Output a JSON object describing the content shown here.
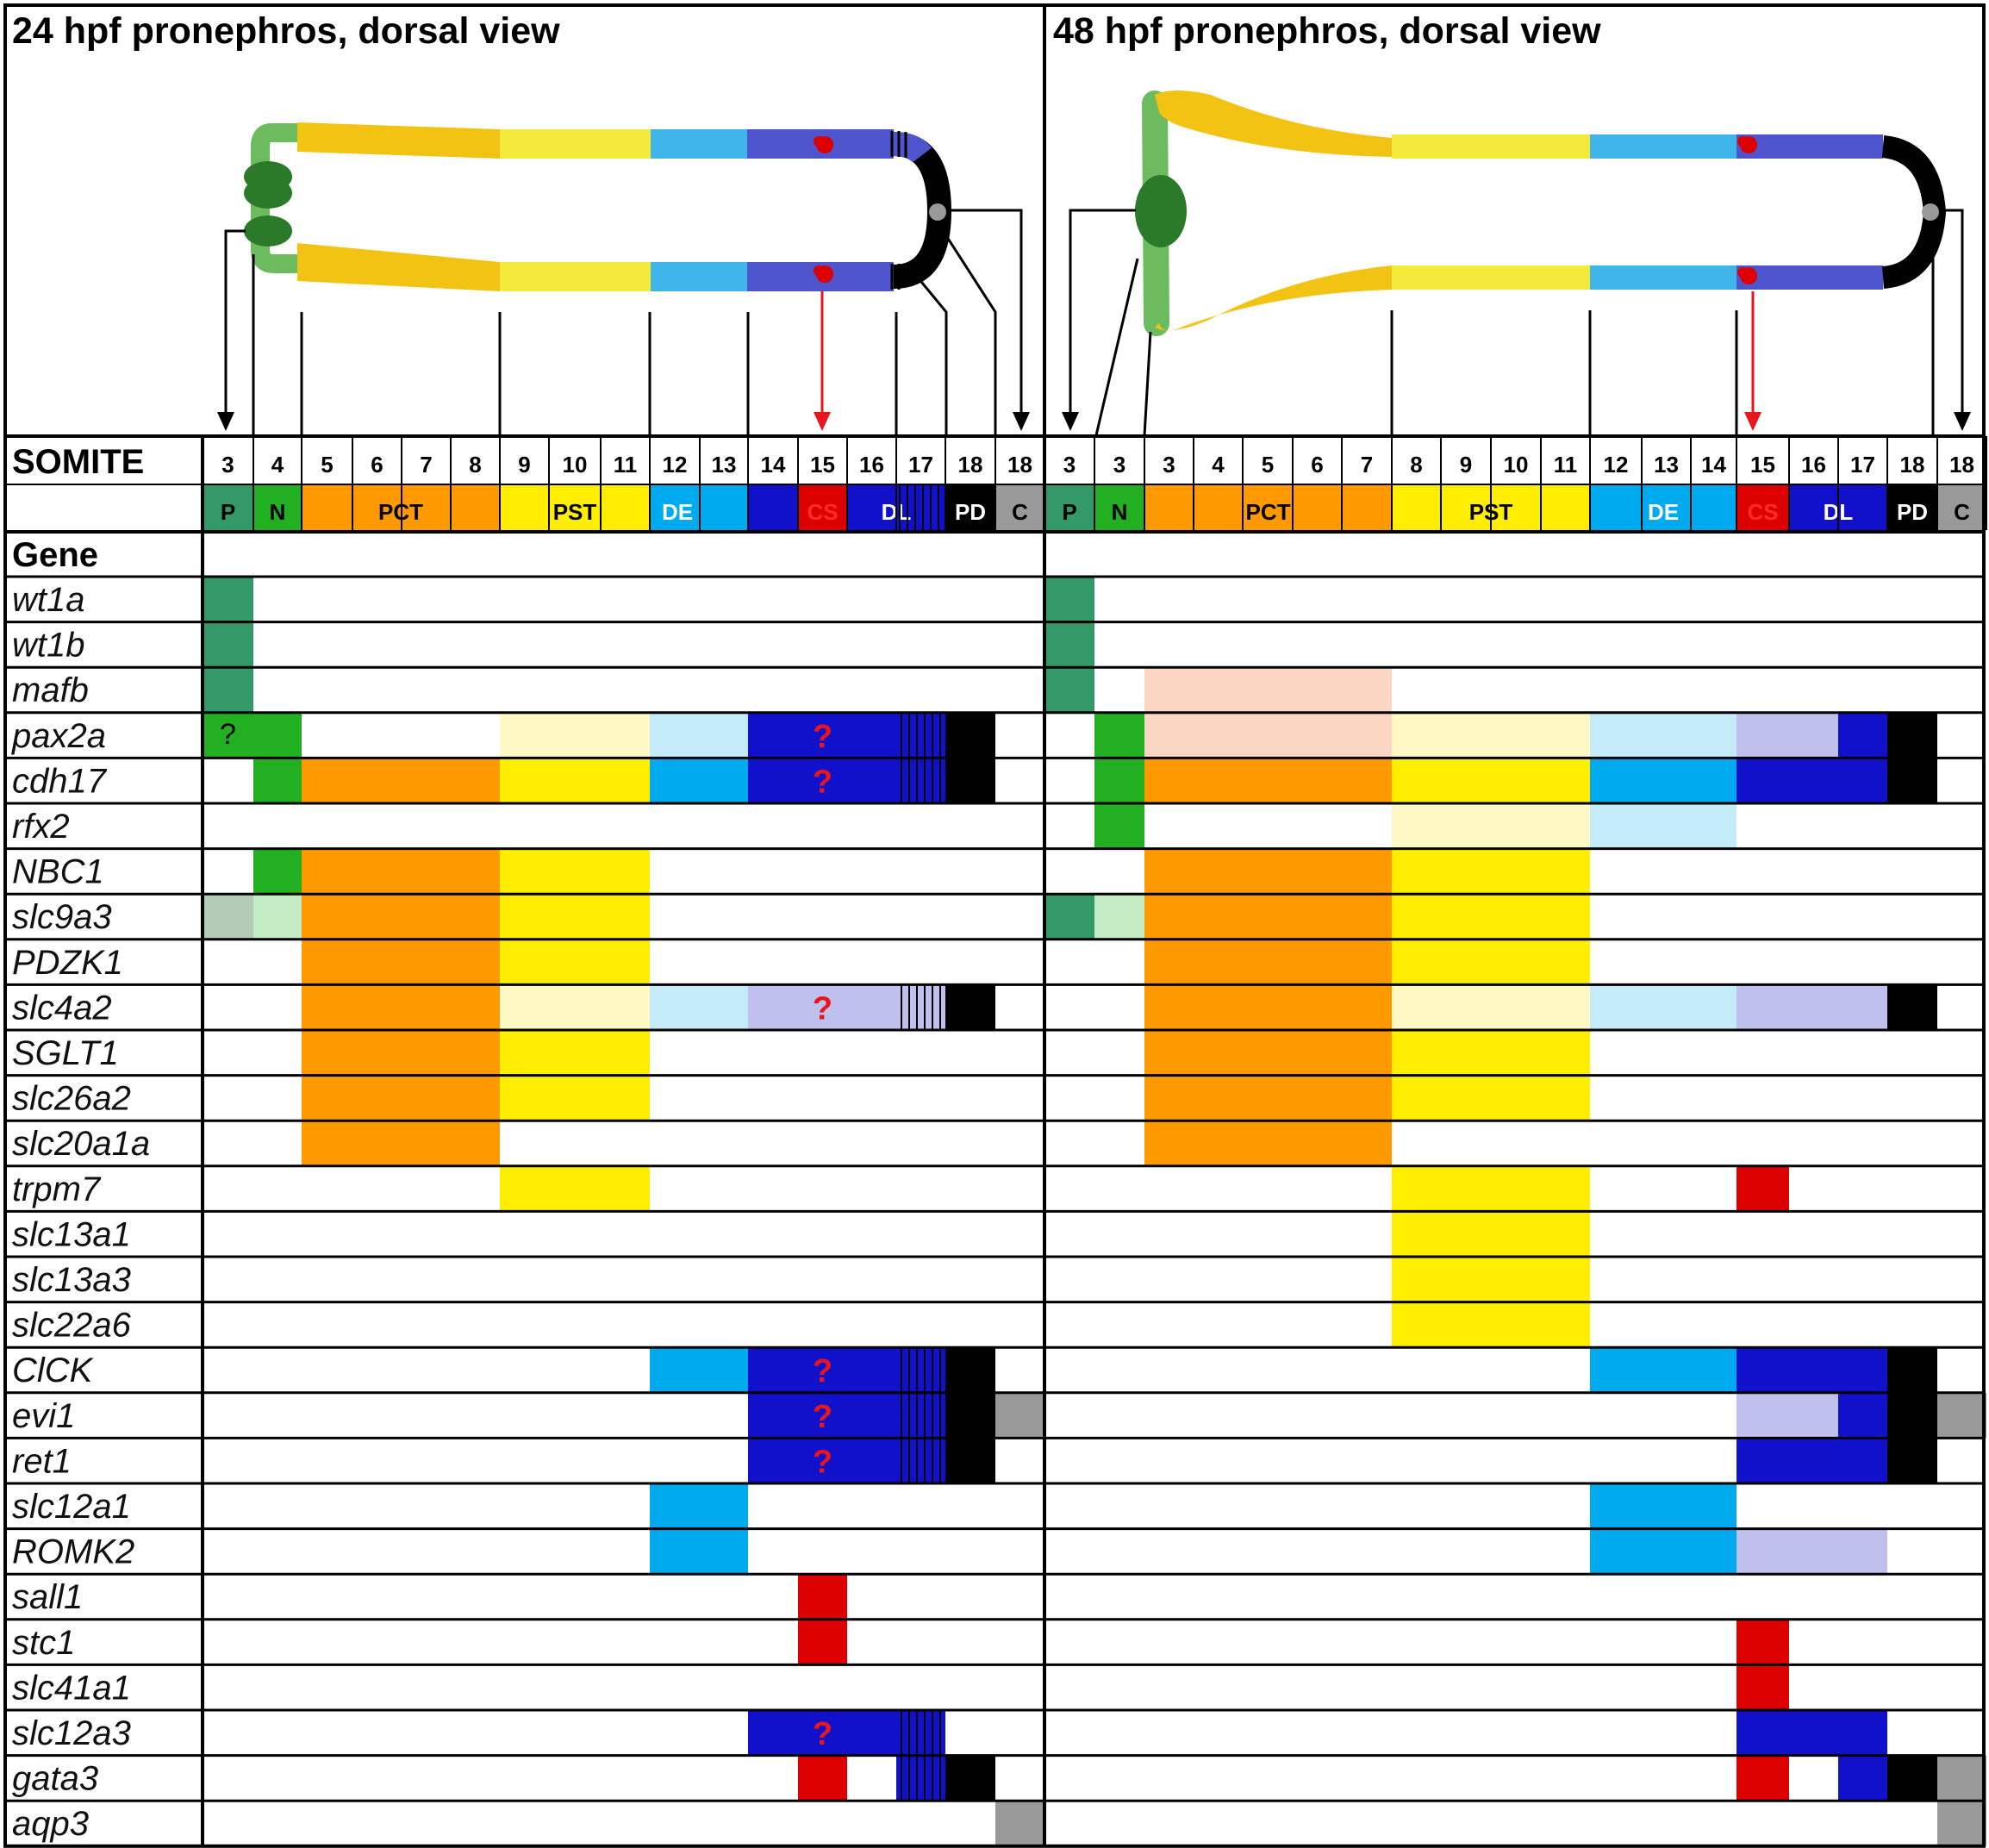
{
  "titles": {
    "left": "24 hpf pronephros, dorsal view",
    "right": "48 hpf pronephros, dorsal view"
  },
  "row_headers": {
    "somite": "SOMITE",
    "gene": "Gene"
  },
  "colors": {
    "P": "#339966",
    "N": "#22b022",
    "PCT": "#ff9900",
    "PST": "#ffee00",
    "DE": "#00aaee",
    "DL": "#1111cc",
    "CS": "#dd0000",
    "PD": "#000000",
    "C": "#999999",
    "P_light": "#b3ccb8",
    "N_light": "#c4ecc4",
    "PCT_light": "#fbd7c3",
    "PST_light": "#fdf8c4",
    "DE_light": "#c3ebf8",
    "DL_light": "#c0c0ee",
    "question": "#e8161c",
    "duct_green": "#6cbb5f",
    "duct_yellow": "#f2c313",
    "duct_pale_yellow": "#f3ea3c",
    "duct_light_blue": "#3fb5ea",
    "duct_blue": "#4e55cc",
    "glomerulus": "#2a7a2a"
  },
  "panels": [
    {
      "id": "24hpf",
      "columns": [
        {
          "key": "P",
          "somite": "3",
          "segment": "P"
        },
        {
          "key": "N",
          "somite": "4",
          "segment": "N"
        },
        {
          "key": "PCT",
          "somite": "5",
          "segment": ""
        },
        {
          "key": "PCT",
          "somite": "6",
          "segment": "PCT"
        },
        {
          "key": "PCT",
          "somite": "7",
          "segment": ""
        },
        {
          "key": "PCT",
          "somite": "8",
          "segment": ""
        },
        {
          "key": "PST",
          "somite": "9",
          "segment": ""
        },
        {
          "key": "PST",
          "somite": "10",
          "segment": "PST"
        },
        {
          "key": "PST",
          "somite": "11",
          "segment": ""
        },
        {
          "key": "DE",
          "somite": "12",
          "segment": "DE"
        },
        {
          "key": "DE",
          "somite": "13",
          "segment": ""
        },
        {
          "key": "DL",
          "somite": "14",
          "segment": ""
        },
        {
          "key": "CS",
          "somite": "15",
          "segment": "CS"
        },
        {
          "key": "DL",
          "somite": "16",
          "segment": "DL"
        },
        {
          "key": "DL",
          "somite": "17",
          "segment": ""
        },
        {
          "key": "PD",
          "somite": "18",
          "segment": "PD"
        },
        {
          "key": "C",
          "somite": "18",
          "segment": "C"
        }
      ]
    },
    {
      "id": "48hpf",
      "columns": [
        {
          "key": "P",
          "somite": "3",
          "segment": "P"
        },
        {
          "key": "N",
          "somite": "3",
          "segment": "N"
        },
        {
          "key": "PCT",
          "somite": "3",
          "segment": ""
        },
        {
          "key": "PCT",
          "somite": "4",
          "segment": ""
        },
        {
          "key": "PCT",
          "somite": "5",
          "segment": "PCT"
        },
        {
          "key": "PCT",
          "somite": "6",
          "segment": ""
        },
        {
          "key": "PCT",
          "somite": "7",
          "segment": ""
        },
        {
          "key": "PST",
          "somite": "8",
          "segment": ""
        },
        {
          "key": "PST",
          "somite": "9",
          "segment": "PST"
        },
        {
          "key": "PST",
          "somite": "10",
          "segment": ""
        },
        {
          "key": "PST",
          "somite": "11",
          "segment": ""
        },
        {
          "key": "DE",
          "somite": "12",
          "segment": ""
        },
        {
          "key": "DE",
          "somite": "13",
          "segment": "DE"
        },
        {
          "key": "DE",
          "somite": "14",
          "segment": ""
        },
        {
          "key": "CS",
          "somite": "15",
          "segment": "CS"
        },
        {
          "key": "DL",
          "somite": "16",
          "segment": "DL"
        },
        {
          "key": "DL",
          "somite": "17",
          "segment": ""
        },
        {
          "key": "PD",
          "somite": "18",
          "segment": "PD"
        },
        {
          "key": "C",
          "somite": "18",
          "segment": "C"
        }
      ]
    }
  ],
  "genes": [
    {
      "name": "wt1a",
      "left": [
        [
          "P",
          0,
          0
        ]
      ],
      "right": [
        [
          "P",
          0,
          0
        ]
      ]
    },
    {
      "name": "wt1b",
      "left": [
        [
          "P",
          0,
          0
        ]
      ],
      "right": [
        [
          "P",
          0,
          0
        ]
      ]
    },
    {
      "name": "mafb",
      "left": [
        [
          "P",
          0,
          0
        ]
      ],
      "right": [
        [
          "P",
          0,
          0
        ],
        [
          "PCT_light",
          2,
          6
        ]
      ]
    },
    {
      "name": "pax2a",
      "left": [
        [
          "N",
          0,
          1,
          "?"
        ],
        [
          "PST_light",
          6,
          8
        ],
        [
          "DE_light",
          9,
          10
        ],
        [
          "DL",
          11,
          14,
          "",
          12
        ],
        [
          "PD",
          15,
          15
        ]
      ],
      "right": [
        [
          "N",
          1,
          1
        ],
        [
          "PCT_light",
          2,
          6
        ],
        [
          "PST_light",
          7,
          10
        ],
        [
          "DE_light",
          11,
          13
        ],
        [
          "DL_light",
          14,
          15
        ],
        [
          "DL",
          16,
          16
        ],
        [
          "PD",
          17,
          17
        ]
      ]
    },
    {
      "name": "cdh17",
      "left": [
        [
          "N",
          1,
          1
        ],
        [
          "PCT",
          2,
          5
        ],
        [
          "PST",
          6,
          8
        ],
        [
          "DE",
          9,
          10
        ],
        [
          "DL",
          11,
          14,
          "",
          12
        ],
        [
          "PD",
          15,
          15
        ]
      ],
      "right": [
        [
          "N",
          1,
          1
        ],
        [
          "PCT",
          2,
          6
        ],
        [
          "PST",
          7,
          10
        ],
        [
          "DE",
          11,
          13
        ],
        [
          "DL",
          14,
          16
        ],
        [
          "PD",
          17,
          17
        ]
      ]
    },
    {
      "name": "rfx2",
      "left": [],
      "right": [
        [
          "N",
          1,
          1
        ],
        [
          "PST_light",
          7,
          10
        ],
        [
          "DE_light",
          11,
          13
        ]
      ]
    },
    {
      "name": "NBC1",
      "left": [
        [
          "N",
          1,
          1
        ],
        [
          "PCT",
          2,
          5
        ],
        [
          "PST",
          6,
          8
        ]
      ],
      "right": [
        [
          "PCT",
          2,
          6
        ],
        [
          "PST",
          7,
          10
        ]
      ]
    },
    {
      "name": "slc9a3",
      "left": [
        [
          "P_light",
          0,
          0
        ],
        [
          "N_light",
          1,
          1
        ],
        [
          "PCT",
          2,
          5
        ],
        [
          "PST",
          6,
          8
        ]
      ],
      "right": [
        [
          "P",
          0,
          0
        ],
        [
          "N_light",
          1,
          1
        ],
        [
          "PCT",
          2,
          6
        ],
        [
          "PST",
          7,
          10
        ]
      ]
    },
    {
      "name": "PDZK1",
      "left": [
        [
          "PCT",
          2,
          5
        ],
        [
          "PST",
          6,
          8
        ]
      ],
      "right": [
        [
          "PCT",
          2,
          6
        ],
        [
          "PST",
          7,
          10
        ]
      ]
    },
    {
      "name": "slc4a2",
      "left": [
        [
          "PCT",
          2,
          5
        ],
        [
          "PST_light",
          6,
          8
        ],
        [
          "DE_light",
          9,
          10
        ],
        [
          "DL_light",
          11,
          14,
          "",
          12
        ],
        [
          "PD",
          15,
          15
        ]
      ],
      "right": [
        [
          "PCT",
          2,
          6
        ],
        [
          "PST_light",
          7,
          10
        ],
        [
          "DE_light",
          11,
          13
        ],
        [
          "DL_light",
          14,
          16
        ],
        [
          "PD",
          17,
          17
        ]
      ]
    },
    {
      "name": "SGLT1",
      "left": [
        [
          "PCT",
          2,
          5
        ],
        [
          "PST",
          6,
          8
        ]
      ],
      "right": [
        [
          "PCT",
          2,
          6
        ],
        [
          "PST",
          7,
          10
        ]
      ]
    },
    {
      "name": "slc26a2",
      "left": [
        [
          "PCT",
          2,
          5
        ],
        [
          "PST",
          6,
          8
        ]
      ],
      "right": [
        [
          "PCT",
          2,
          6
        ],
        [
          "PST",
          7,
          10
        ]
      ]
    },
    {
      "name": "slc20a1a",
      "left": [
        [
          "PCT",
          2,
          5
        ]
      ],
      "right": [
        [
          "PCT",
          2,
          6
        ]
      ]
    },
    {
      "name": "trpm7",
      "left": [
        [
          "PST",
          6,
          8
        ]
      ],
      "right": [
        [
          "PST",
          7,
          10
        ],
        [
          "CS",
          14,
          14
        ]
      ]
    },
    {
      "name": "slc13a1",
      "left": [],
      "right": [
        [
          "PST",
          7,
          10
        ]
      ]
    },
    {
      "name": "slc13a3",
      "left": [],
      "right": [
        [
          "PST",
          7,
          10
        ]
      ]
    },
    {
      "name": "slc22a6",
      "left": [],
      "right": [
        [
          "PST",
          7,
          10
        ]
      ]
    },
    {
      "name": "ClCK",
      "left": [
        [
          "DE",
          9,
          10
        ],
        [
          "DL",
          11,
          14,
          "",
          12
        ],
        [
          "PD",
          15,
          15
        ]
      ],
      "right": [
        [
          "DE",
          11,
          13
        ],
        [
          "DL",
          14,
          16
        ],
        [
          "PD",
          17,
          17
        ]
      ]
    },
    {
      "name": "evi1",
      "left": [
        [
          "DL",
          11,
          14,
          "",
          12
        ],
        [
          "PD",
          15,
          15
        ],
        [
          "C",
          16,
          16
        ]
      ],
      "right": [
        [
          "DL_light",
          14,
          15
        ],
        [
          "DL",
          16,
          16
        ],
        [
          "PD",
          17,
          17
        ],
        [
          "C",
          18,
          18
        ]
      ]
    },
    {
      "name": "ret1",
      "left": [
        [
          "DL",
          11,
          14,
          "",
          12
        ],
        [
          "PD",
          15,
          15
        ]
      ],
      "right": [
        [
          "DL",
          14,
          16
        ],
        [
          "PD",
          17,
          17
        ]
      ]
    },
    {
      "name": "slc12a1",
      "left": [
        [
          "DE",
          9,
          10
        ]
      ],
      "right": [
        [
          "DE",
          11,
          13
        ]
      ]
    },
    {
      "name": "ROMK2",
      "left": [
        [
          "DE",
          9,
          10
        ]
      ],
      "right": [
        [
          "DE",
          11,
          13
        ],
        [
          "DL_light",
          14,
          16
        ]
      ]
    },
    {
      "name": "sall1",
      "left": [
        [
          "CS",
          12,
          12
        ]
      ],
      "right": []
    },
    {
      "name": "stc1",
      "left": [
        [
          "CS",
          12,
          12
        ]
      ],
      "right": [
        [
          "CS",
          14,
          14
        ]
      ]
    },
    {
      "name": "slc41a1",
      "left": [],
      "right": [
        [
          "CS",
          14,
          14
        ]
      ]
    },
    {
      "name": "slc12a3",
      "left": [
        [
          "DL",
          11,
          14,
          "",
          12
        ]
      ],
      "right": [
        [
          "DL",
          14,
          16
        ]
      ]
    },
    {
      "name": "gata3",
      "left": [
        [
          "CS",
          12,
          12
        ],
        [
          "DL",
          14,
          14
        ],
        [
          "PD",
          15,
          15
        ]
      ],
      "right": [
        [
          "CS",
          14,
          14
        ],
        [
          "DL",
          16,
          16
        ],
        [
          "PD",
          17,
          17
        ],
        [
          "C",
          18,
          18
        ]
      ]
    },
    {
      "name": "aqp3",
      "left": [
        [
          "C",
          16,
          16
        ]
      ],
      "right": [
        [
          "C",
          18,
          18
        ]
      ]
    }
  ]
}
